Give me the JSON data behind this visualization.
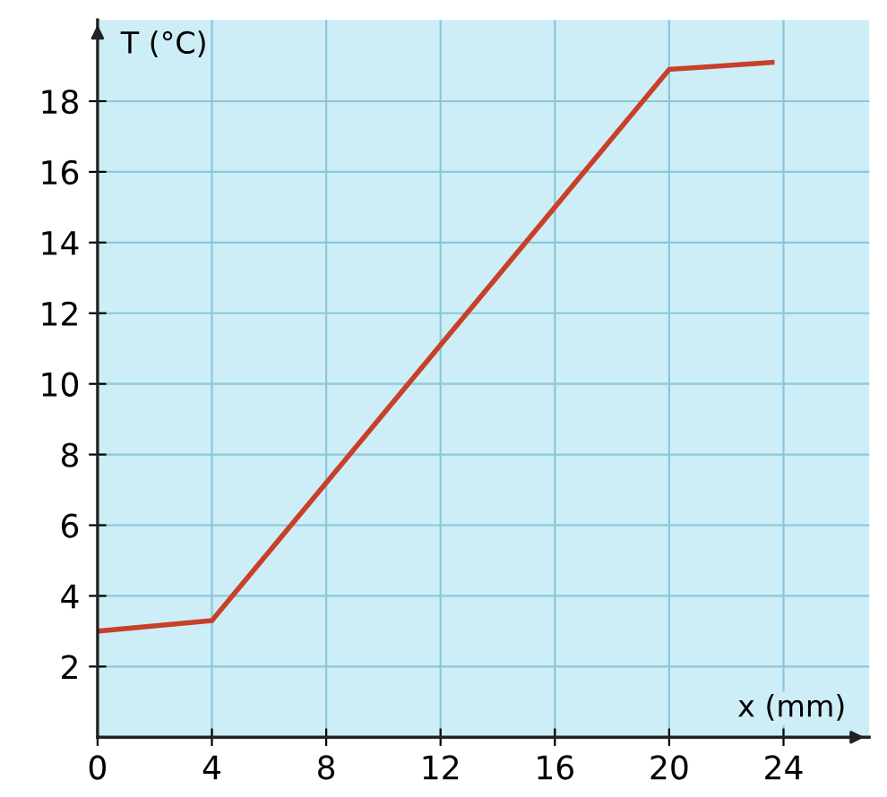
{
  "chart_data": {
    "type": "line",
    "xlabel": "x (mm)",
    "ylabel": "T (°C)",
    "x": [
      0,
      4,
      20,
      23.6
    ],
    "series": [
      {
        "color": "#c8402a",
        "values": [
          3.0,
          3.3,
          18.9,
          19.1
        ]
      }
    ],
    "xlim": [
      0,
      27
    ],
    "ylim": [
      0,
      20.3
    ],
    "xticks": [
      0,
      4,
      8,
      12,
      16,
      20,
      24
    ],
    "yticks": [
      2,
      4,
      6,
      8,
      10,
      12,
      14,
      16,
      18
    ],
    "grid": true,
    "marker": "none",
    "line_style": "solid"
  }
}
